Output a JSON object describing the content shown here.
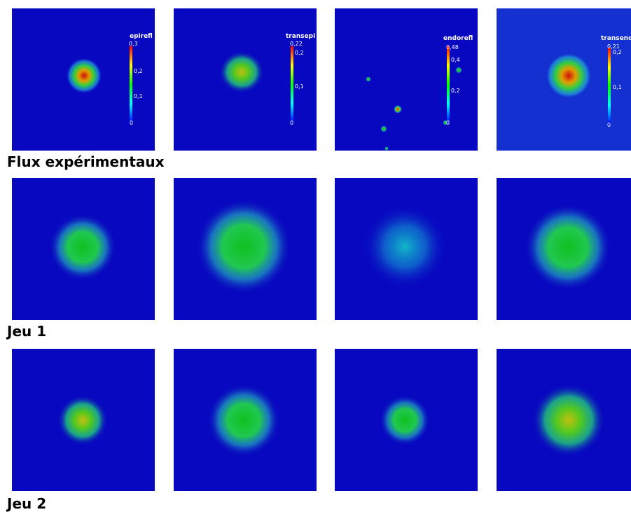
{
  "rows": [
    {
      "label": "Flux expérimentaux"
    },
    {
      "label": "Jeu 1"
    },
    {
      "label": "Jeu 2"
    }
  ],
  "colorbars": [
    {
      "title": "epirefl",
      "ticks": [
        "0,3",
        "0,2",
        "0,1",
        "0"
      ]
    },
    {
      "title": "transepi",
      "ticks": [
        "0,22",
        "0,2",
        "0,1",
        "0"
      ]
    },
    {
      "title": "endorefl",
      "ticks": [
        "0,48",
        "0,4",
        "0,2",
        "0"
      ]
    },
    {
      "title": "transend",
      "ticks": [
        "0,21",
        "0,2",
        "0,1",
        "0"
      ]
    }
  ]
}
